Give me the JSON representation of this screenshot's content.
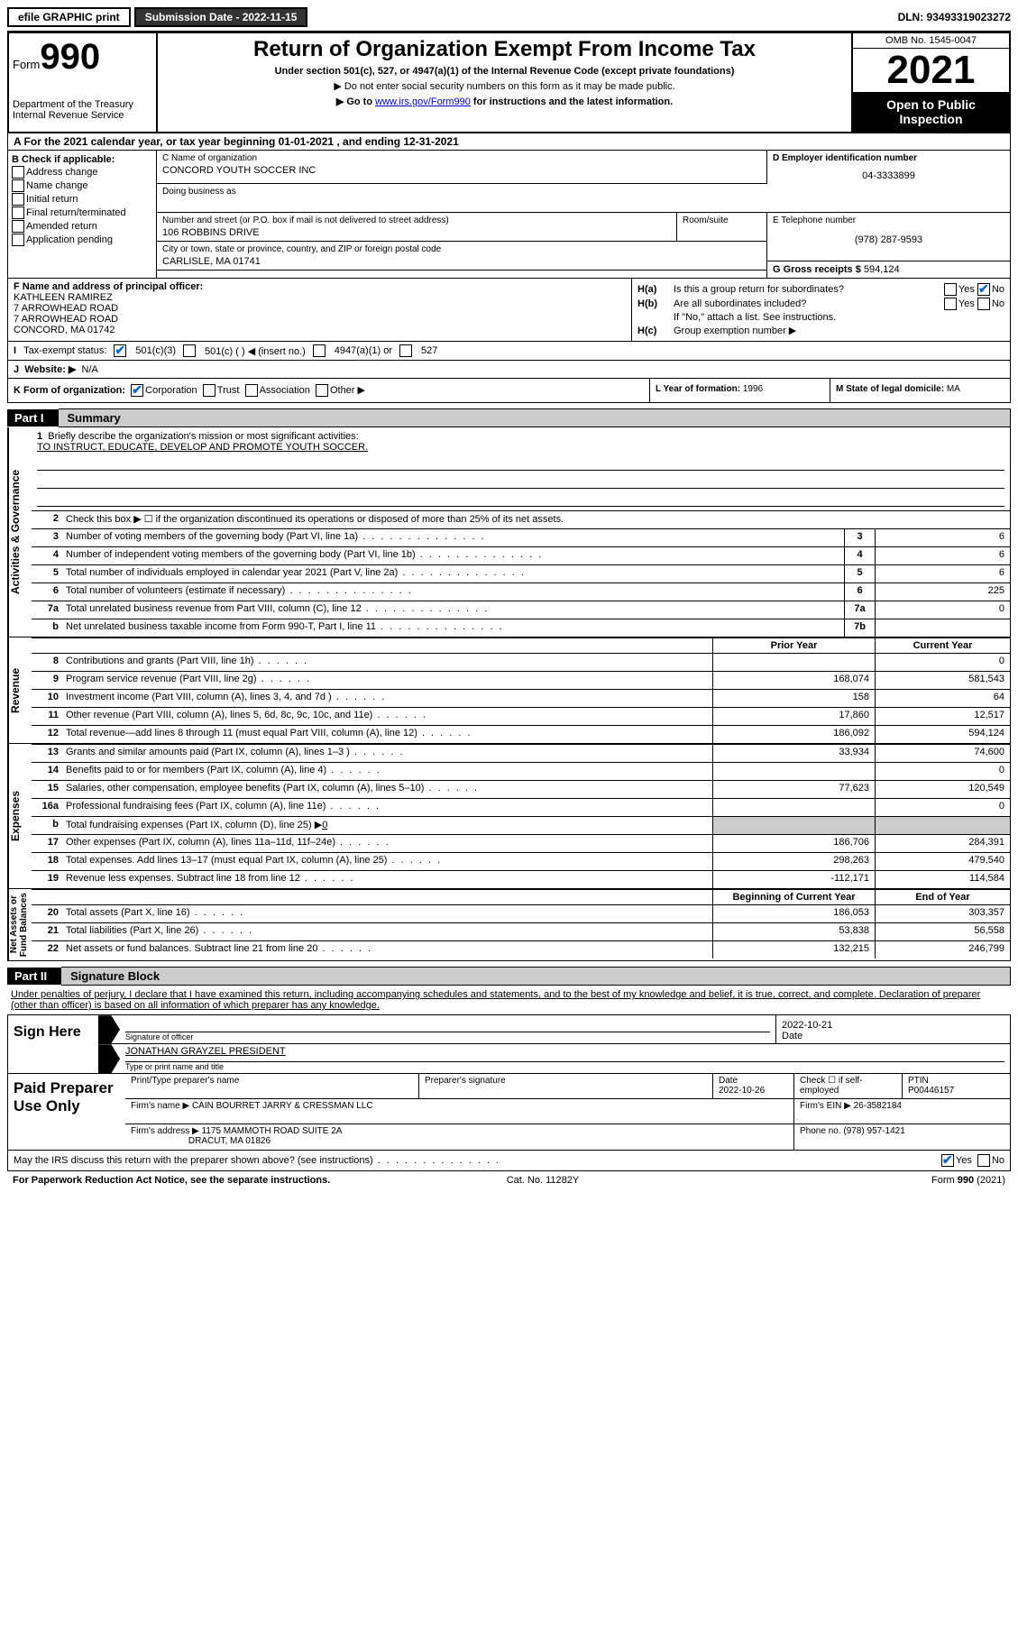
{
  "topbar": {
    "efile": "efile GRAPHIC print",
    "submission": "Submission Date - 2022-11-15",
    "dln": "DLN: 93493319023272"
  },
  "header": {
    "form_label": "Form",
    "form_num": "990",
    "dept": "Department of the Treasury\nInternal Revenue Service",
    "title": "Return of Organization Exempt From Income Tax",
    "subtitle": "Under section 501(c), 527, or 4947(a)(1) of the Internal Revenue Code (except private foundations)",
    "instr1": "▶ Do not enter social security numbers on this form as it may be made public.",
    "instr2_pre": "▶ Go to ",
    "instr2_link": "www.irs.gov/Form990",
    "instr2_post": " for instructions and the latest information.",
    "omb": "OMB No. 1545-0047",
    "year": "2021",
    "open": "Open to Public Inspection"
  },
  "row_a": "A For the 2021 calendar year, or tax year beginning 01-01-2021   , and ending 12-31-2021",
  "box_b": {
    "label": "B Check if applicable:",
    "opts": [
      "Address change",
      "Name change",
      "Initial return",
      "Final return/terminated",
      "Amended return",
      "Application pending"
    ]
  },
  "box_c": {
    "name_lbl": "C Name of organization",
    "name": "CONCORD YOUTH SOCCER INC",
    "dba_lbl": "Doing business as",
    "ns_lbl": "Number and street (or P.O. box if mail is not delivered to street address)",
    "ns": "106 ROBBINS DRIVE",
    "room_lbl": "Room/suite",
    "city_lbl": "City or town, state or province, country, and ZIP or foreign postal code",
    "city": "CARLISLE, MA  01741"
  },
  "box_d": {
    "lbl": "D Employer identification number",
    "val": "04-3333899"
  },
  "box_e": {
    "lbl": "E Telephone number",
    "val": "(978) 287-9593"
  },
  "box_g": {
    "lbl": "G Gross receipts $",
    "val": "594,124"
  },
  "box_f": {
    "lbl": "F Name and address of principal officer:",
    "lines": [
      "KATHLEEN RAMIREZ",
      "7 ARROWHEAD ROAD",
      "7 ARROWHEAD ROAD",
      "CONCORD, MA  01742"
    ]
  },
  "box_h": {
    "a_lbl": "Is this a group return for subordinates?",
    "b_lbl": "Are all subordinates included?",
    "note": "If \"No,\" attach a list. See instructions.",
    "c_lbl": "Group exemption number ▶"
  },
  "box_i": {
    "lbl": "Tax-exempt status:",
    "o1": "501(c)(3)",
    "o2": "501(c) (  ) ◀ (insert no.)",
    "o3": "4947(a)(1) or",
    "o4": "527"
  },
  "box_j": {
    "lbl": "Website: ▶",
    "val": "N/A"
  },
  "box_k": {
    "lbl": "K Form of organization:",
    "o1": "Corporation",
    "o2": "Trust",
    "o3": "Association",
    "o4": "Other ▶"
  },
  "box_l": {
    "lbl": "L Year of formation:",
    "val": "1996"
  },
  "box_m": {
    "lbl": "M State of legal domicile:",
    "val": "MA"
  },
  "part1": {
    "tag": "Part I",
    "title": "Summary"
  },
  "mission": {
    "num": "1",
    "lbl": "Briefly describe the organization's mission or most significant activities:",
    "text": "TO INSTRUCT, EDUCATE, DEVELOP AND PROMOTE YOUTH SOCCER."
  },
  "line2": "Check this box ▶ ☐ if the organization discontinued its operations or disposed of more than 25% of its net assets.",
  "gov_rows": [
    {
      "n": "3",
      "d": "Number of voting members of the governing body (Part VI, line 1a)",
      "b": "3",
      "v": "6"
    },
    {
      "n": "4",
      "d": "Number of independent voting members of the governing body (Part VI, line 1b)",
      "b": "4",
      "v": "6"
    },
    {
      "n": "5",
      "d": "Total number of individuals employed in calendar year 2021 (Part V, line 2a)",
      "b": "5",
      "v": "6"
    },
    {
      "n": "6",
      "d": "Total number of volunteers (estimate if necessary)",
      "b": "6",
      "v": "225"
    },
    {
      "n": "7a",
      "d": "Total unrelated business revenue from Part VIII, column (C), line 12",
      "b": "7a",
      "v": "0"
    },
    {
      "n": "b",
      "d": "Net unrelated business taxable income from Form 990-T, Part I, line 11",
      "b": "7b",
      "v": ""
    }
  ],
  "col_hdrs": {
    "prior": "Prior Year",
    "current": "Current Year",
    "boy": "Beginning of Current Year",
    "eoy": "End of Year"
  },
  "rev_rows": [
    {
      "n": "8",
      "d": "Contributions and grants (Part VIII, line 1h)",
      "p": "",
      "c": "0"
    },
    {
      "n": "9",
      "d": "Program service revenue (Part VIII, line 2g)",
      "p": "168,074",
      "c": "581,543"
    },
    {
      "n": "10",
      "d": "Investment income (Part VIII, column (A), lines 3, 4, and 7d )",
      "p": "158",
      "c": "64"
    },
    {
      "n": "11",
      "d": "Other revenue (Part VIII, column (A), lines 5, 6d, 8c, 9c, 10c, and 11e)",
      "p": "17,860",
      "c": "12,517"
    },
    {
      "n": "12",
      "d": "Total revenue—add lines 8 through 11 (must equal Part VIII, column (A), line 12)",
      "p": "186,092",
      "c": "594,124"
    }
  ],
  "exp_rows": [
    {
      "n": "13",
      "d": "Grants and similar amounts paid (Part IX, column (A), lines 1–3 )",
      "p": "33,934",
      "c": "74,600"
    },
    {
      "n": "14",
      "d": "Benefits paid to or for members (Part IX, column (A), line 4)",
      "p": "",
      "c": "0"
    },
    {
      "n": "15",
      "d": "Salaries, other compensation, employee benefits (Part IX, column (A), lines 5–10)",
      "p": "77,623",
      "c": "120,549"
    },
    {
      "n": "16a",
      "d": "Professional fundraising fees (Part IX, column (A), line 11e)",
      "p": "",
      "c": "0"
    }
  ],
  "line16b": {
    "n": "b",
    "d": "Total fundraising expenses (Part IX, column (D), line 25) ▶",
    "v": "0"
  },
  "exp_rows2": [
    {
      "n": "17",
      "d": "Other expenses (Part IX, column (A), lines 11a–11d, 11f–24e)",
      "p": "186,706",
      "c": "284,391"
    },
    {
      "n": "18",
      "d": "Total expenses. Add lines 13–17 (must equal Part IX, column (A), line 25)",
      "p": "298,263",
      "c": "479,540"
    },
    {
      "n": "19",
      "d": "Revenue less expenses. Subtract line 18 from line 12",
      "p": "-112,171",
      "c": "114,584"
    }
  ],
  "na_rows": [
    {
      "n": "20",
      "d": "Total assets (Part X, line 16)",
      "p": "186,053",
      "c": "303,357"
    },
    {
      "n": "21",
      "d": "Total liabilities (Part X, line 26)",
      "p": "53,838",
      "c": "56,558"
    },
    {
      "n": "22",
      "d": "Net assets or fund balances. Subtract line 21 from line 20",
      "p": "132,215",
      "c": "246,799"
    }
  ],
  "vtabs": {
    "gov": "Activities & Governance",
    "rev": "Revenue",
    "exp": "Expenses",
    "na": "Net Assets or\nFund Balances"
  },
  "part2": {
    "tag": "Part II",
    "title": "Signature Block"
  },
  "sig": {
    "intro": "Under penalties of perjury, I declare that I have examined this return, including accompanying schedules and statements, and to the best of my knowledge and belief, it is true, correct, and complete. Declaration of preparer (other than officer) is based on all information of which preparer has any knowledge.",
    "here": "Sign Here",
    "off_lbl": "Signature of officer",
    "date_lbl": "Date",
    "date": "2022-10-21",
    "name": "JONATHAN GRAYZEL  PRESIDENT",
    "name_lbl": "Type or print name and title"
  },
  "prep": {
    "title": "Paid Preparer Use Only",
    "r1": {
      "c1": "Print/Type preparer's name",
      "c2": "Preparer's signature",
      "c3": "Date",
      "c3v": "2022-10-26",
      "c4": "Check ☐ if self-employed",
      "c5": "PTIN",
      "c5v": "P00446157"
    },
    "r2": {
      "lbl": "Firm's name    ▶",
      "val": "CAIN BOURRET JARRY & CRESSMAN LLC",
      "ein_lbl": "Firm's EIN ▶",
      "ein": "26-3582184"
    },
    "r3": {
      "lbl": "Firm's address ▶",
      "val1": "1175 MAMMOTH ROAD SUITE 2A",
      "val2": "DRACUT, MA  01826",
      "ph_lbl": "Phone no.",
      "ph": "(978) 957-1421"
    }
  },
  "may": "May the IRS discuss this return with the preparer shown above? (see instructions)",
  "footer": {
    "l": "For Paperwork Reduction Act Notice, see the separate instructions.",
    "m": "Cat. No. 11282Y",
    "r": "Form 990 (2021)"
  }
}
